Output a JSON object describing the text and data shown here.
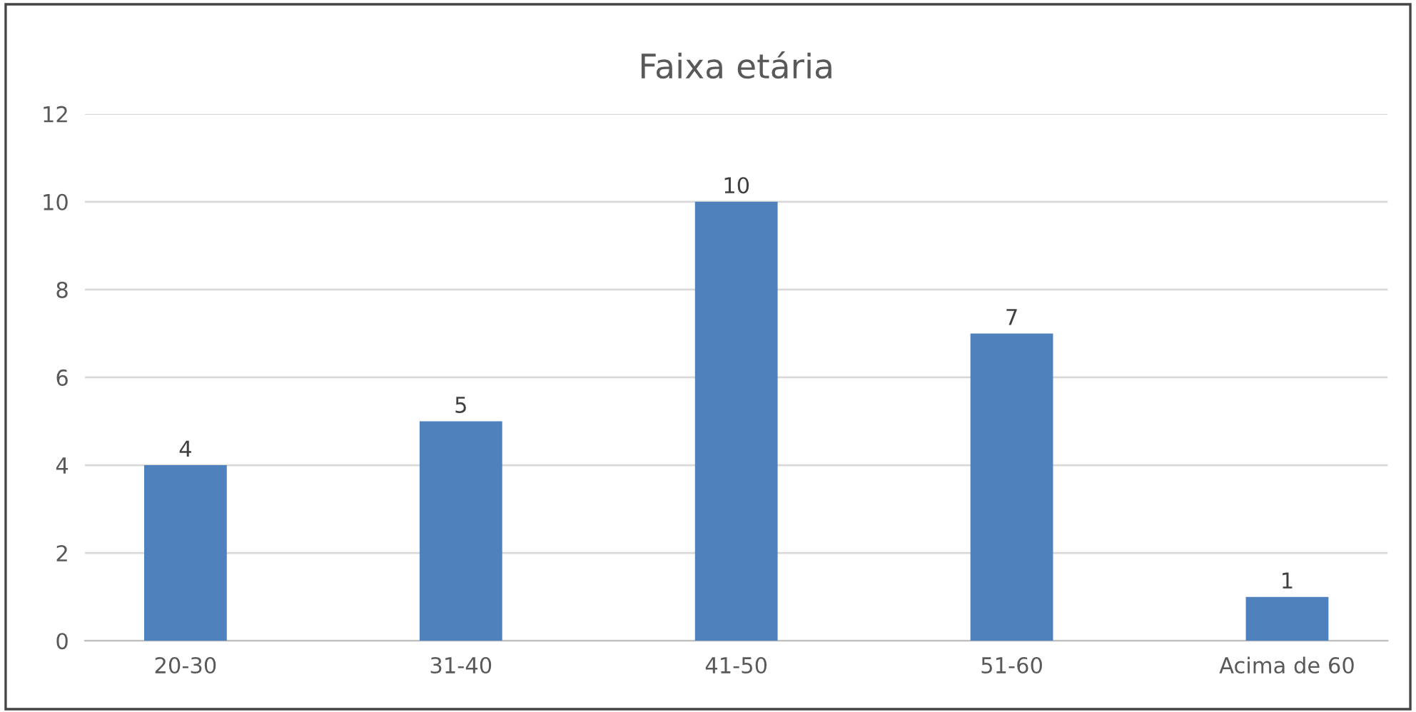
{
  "chart_data": {
    "type": "bar",
    "title": "Faixa etária",
    "categories": [
      "20-30",
      "31-40",
      "41-50",
      "51-60",
      "Acima de 60"
    ],
    "values": [
      4,
      5,
      10,
      7,
      1
    ],
    "color": "#4f81bd",
    "ylim": [
      0,
      12
    ],
    "yticks": [
      0,
      2,
      4,
      6,
      8,
      10,
      12
    ],
    "grid": "y",
    "data_labels": true,
    "legend": false
  }
}
